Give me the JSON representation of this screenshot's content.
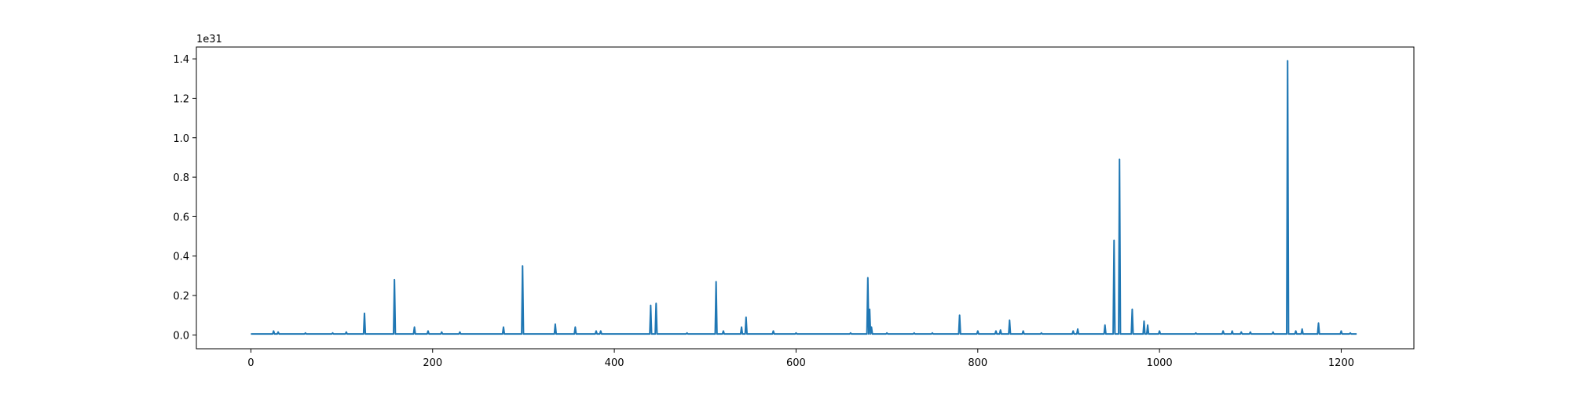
{
  "chart_data": {
    "type": "line",
    "title": "",
    "xlabel": "",
    "ylabel": "",
    "y_offset_label": "1e31",
    "xlim": [
      -60,
      1280
    ],
    "ylim": [
      -0.07,
      1.46
    ],
    "x_ticks": [
      0,
      200,
      400,
      600,
      800,
      1000,
      1200
    ],
    "x_tick_labels": [
      "0",
      "200",
      "400",
      "600",
      "800",
      "1000",
      "1200"
    ],
    "y_ticks": [
      0.0,
      0.2,
      0.4,
      0.6,
      0.8,
      1.0,
      1.2,
      1.4
    ],
    "y_tick_labels": [
      "0.0",
      "0.2",
      "0.4",
      "0.6",
      "0.8",
      "1.0",
      "1.2",
      "1.4"
    ],
    "grid": false,
    "series": [
      {
        "color": "#1f77b4",
        "x_range": [
          0,
          1217
        ],
        "baseline": 0.005,
        "peaks": [
          [
            25,
            0.02
          ],
          [
            30,
            0.015
          ],
          [
            60,
            0.01
          ],
          [
            90,
            0.01
          ],
          [
            105,
            0.015
          ],
          [
            125,
            0.11
          ],
          [
            158,
            0.28
          ],
          [
            180,
            0.04
          ],
          [
            195,
            0.02
          ],
          [
            210,
            0.015
          ],
          [
            230,
            0.015
          ],
          [
            278,
            0.04
          ],
          [
            299,
            0.35
          ],
          [
            335,
            0.055
          ],
          [
            357,
            0.04
          ],
          [
            380,
            0.02
          ],
          [
            385,
            0.02
          ],
          [
            440,
            0.15
          ],
          [
            446,
            0.16
          ],
          [
            480,
            0.01
          ],
          [
            512,
            0.27
          ],
          [
            520,
            0.02
          ],
          [
            540,
            0.04
          ],
          [
            545,
            0.09
          ],
          [
            575,
            0.02
          ],
          [
            600,
            0.01
          ],
          [
            660,
            0.01
          ],
          [
            679,
            0.29
          ],
          [
            681,
            0.13
          ],
          [
            683,
            0.04
          ],
          [
            700,
            0.01
          ],
          [
            730,
            0.01
          ],
          [
            750,
            0.01
          ],
          [
            780,
            0.1
          ],
          [
            800,
            0.02
          ],
          [
            820,
            0.02
          ],
          [
            825,
            0.025
          ],
          [
            835,
            0.075
          ],
          [
            850,
            0.02
          ],
          [
            870,
            0.01
          ],
          [
            905,
            0.02
          ],
          [
            910,
            0.03
          ],
          [
            940,
            0.05
          ],
          [
            950,
            0.48
          ],
          [
            956,
            0.89
          ],
          [
            970,
            0.13
          ],
          [
            983,
            0.07
          ],
          [
            987,
            0.05
          ],
          [
            1000,
            0.02
          ],
          [
            1040,
            0.01
          ],
          [
            1070,
            0.02
          ],
          [
            1080,
            0.02
          ],
          [
            1090,
            0.015
          ],
          [
            1100,
            0.015
          ],
          [
            1125,
            0.015
          ],
          [
            1141,
            1.39
          ],
          [
            1150,
            0.02
          ],
          [
            1157,
            0.03
          ],
          [
            1175,
            0.06
          ],
          [
            1200,
            0.02
          ],
          [
            1210,
            0.01
          ]
        ]
      }
    ]
  }
}
